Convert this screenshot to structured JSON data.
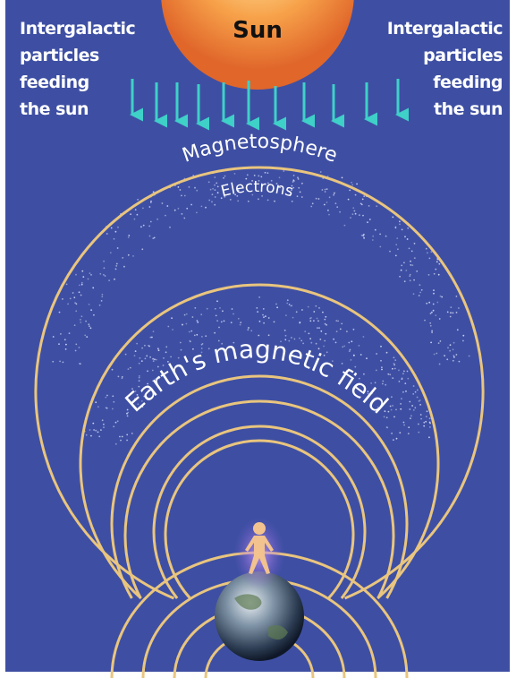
{
  "sun": {
    "label": "Sun"
  },
  "left_note": {
    "lines": [
      "Intergalactic",
      "particles",
      "feeding",
      "the sun"
    ]
  },
  "right_note": {
    "lines": [
      "Intergalactic",
      "particles",
      "feeding",
      "the sun"
    ]
  },
  "magnetosphere": {
    "label": "Magnetosphere"
  },
  "electrons": {
    "label": "Electrons"
  },
  "field": {
    "label": "Earth's magnetic field"
  }
}
